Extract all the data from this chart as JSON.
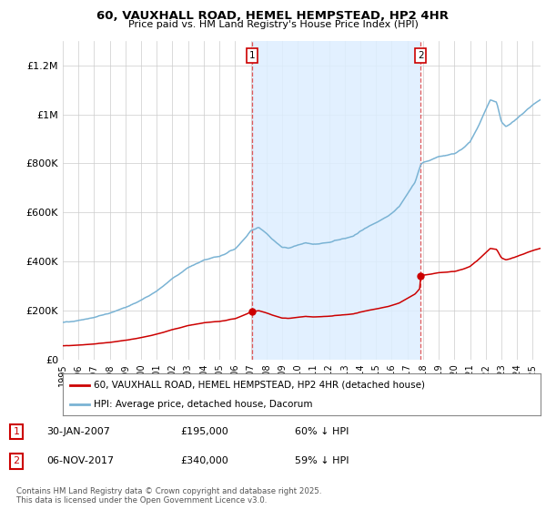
{
  "title_line1": "60, VAUXHALL ROAD, HEMEL HEMPSTEAD, HP2 4HR",
  "title_line2": "Price paid vs. HM Land Registry's House Price Index (HPI)",
  "ylabel_ticks": [
    "£0",
    "£200K",
    "£400K",
    "£600K",
    "£800K",
    "£1M",
    "£1.2M"
  ],
  "ytick_values": [
    0,
    200000,
    400000,
    600000,
    800000,
    1000000,
    1200000
  ],
  "ylim": [
    0,
    1300000
  ],
  "hpi_color": "#7ab3d4",
  "hpi_fill_color": "#ddeeff",
  "price_color": "#cc0000",
  "bg_color": "#ffffff",
  "plot_bg_color": "#ffffff",
  "grid_color": "#cccccc",
  "legend_line1": "60, VAUXHALL ROAD, HEMEL HEMPSTEAD, HP2 4HR (detached house)",
  "legend_line2": "HPI: Average price, detached house, Dacorum",
  "footnote": "Contains HM Land Registry data © Crown copyright and database right 2025.\nThis data is licensed under the Open Government Licence v3.0.",
  "purchase1_year": 2007.08,
  "purchase1_price": 195000,
  "purchase2_year": 2017.84,
  "purchase2_price": 340000,
  "xstart": 1995,
  "xend": 2025.5
}
